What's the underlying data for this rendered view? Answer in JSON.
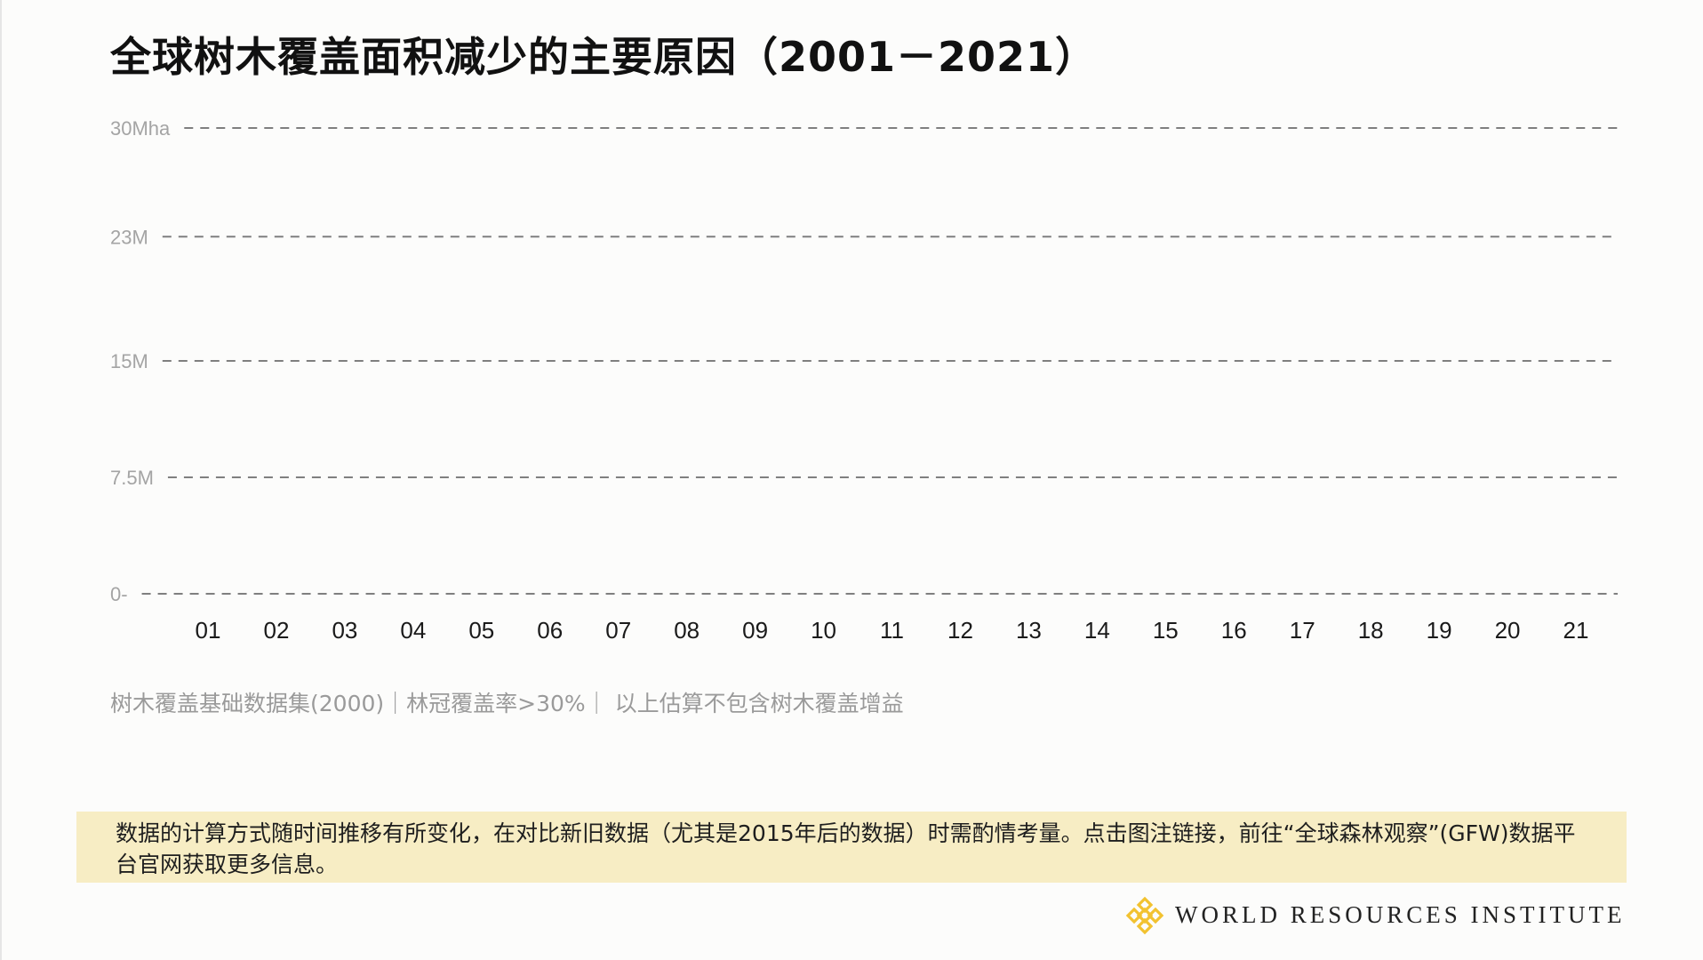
{
  "title": "全球树木覆盖面积减少的主要原因（2001－2021）",
  "chart_data": {
    "type": "bar",
    "title": "全球树木覆盖面积减少的主要原因（2001－2021）",
    "categories": [
      "01",
      "02",
      "03",
      "04",
      "05",
      "06",
      "07",
      "08",
      "09",
      "10",
      "11",
      "12",
      "13",
      "14",
      "15",
      "16",
      "17",
      "18",
      "19",
      "20",
      "21"
    ],
    "series": [],
    "y_ticks": [
      {
        "value": 0,
        "label": "0-"
      },
      {
        "value": 7.5,
        "label": "7.5M"
      },
      {
        "value": 15,
        "label": "15M"
      },
      {
        "value": 23,
        "label": "23M"
      },
      {
        "value": 30,
        "label": "30Mha"
      }
    ],
    "ylim": [
      0,
      30
    ],
    "grid": true,
    "legend": "none"
  },
  "caption": "树木覆盖基础数据集(2000)｜林冠覆盖率>30%｜ 以上估算不包含树木覆盖增益",
  "notice": "数据的计算方式随时间推移有所变化，在对比新旧数据（尤其是2015年后的数据）时需酌情考量。点击图注链接，前往“全球森林观察”(GFW)数据平台官网获取更多信息。",
  "logo": {
    "text": "WORLD RESOURCES INSTITUTE",
    "icon": "wri-lattice-logo-icon",
    "color": "#f2c230"
  },
  "colors": {
    "gridline": "#7f7f7f",
    "notice_bg": "#f7edc4"
  }
}
